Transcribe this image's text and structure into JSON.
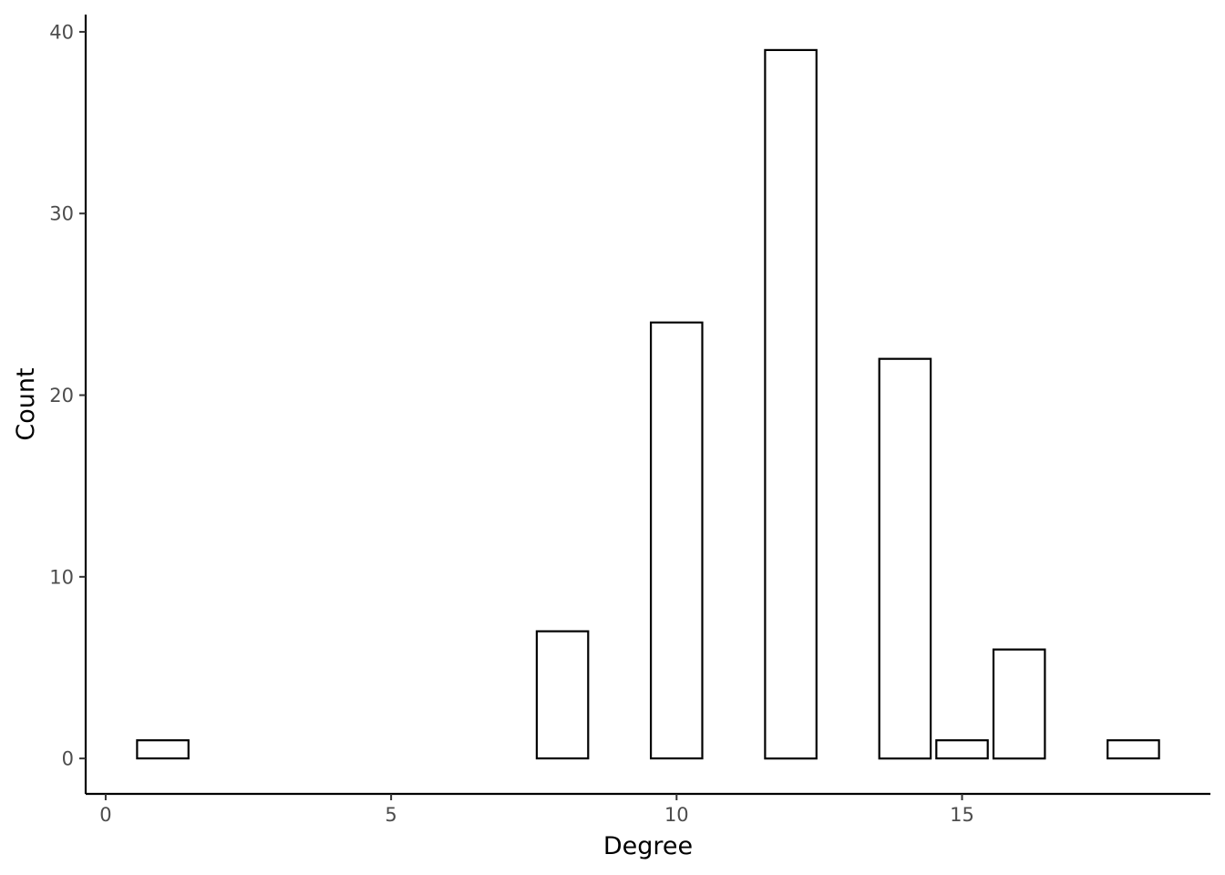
{
  "chart_data": {
    "type": "bar",
    "title": "",
    "xlabel": "Degree",
    "ylabel": "Count",
    "x": [
      1,
      8,
      10,
      12,
      14,
      15,
      16,
      18
    ],
    "values": [
      1,
      7,
      24,
      39,
      22,
      1,
      6,
      1
    ],
    "xlim": [
      -0.35,
      19.35
    ],
    "ylim": [
      -1.95,
      40.95
    ],
    "x_ticks": [
      "0",
      "5",
      "10",
      "15"
    ],
    "y_ticks": [
      "0",
      "10",
      "20",
      "30",
      "40"
    ],
    "bar_fill": "#ffffff",
    "bar_stroke": "#000000",
    "grid": false,
    "legend": "none"
  }
}
